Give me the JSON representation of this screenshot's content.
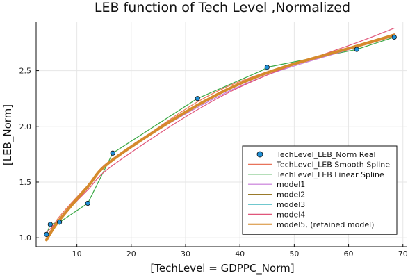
{
  "chart_data": {
    "type": "scatter",
    "title": "LEB function of Tech Level ,Normalized",
    "xlabel": "[TechLevel = GDPPC_Norm]",
    "ylabel": "[LEB_Norm]",
    "xlim": [
      2.5,
      70.8
    ],
    "ylim": [
      0.92,
      2.94
    ],
    "xticks": [
      10,
      20,
      30,
      40,
      50,
      60,
      70
    ],
    "yticks": [
      1.0,
      1.5,
      2.0,
      2.5
    ],
    "xtick_labels": [
      "10",
      "20",
      "30",
      "40",
      "50",
      "60",
      "70"
    ],
    "ytick_labels": [
      "1.0",
      "1.5",
      "2.0",
      "2.5"
    ],
    "grid": true,
    "legend_position": "bottom-right",
    "points_series": {
      "name": "TechLevel_LEB_Norm Real",
      "color": "#1f8fd6",
      "x": [
        4.4,
        5.1,
        6.8,
        12.0,
        16.6,
        32.2,
        45.0,
        61.5,
        68.4
      ],
      "y": [
        1.03,
        1.12,
        1.14,
        1.31,
        1.76,
        2.25,
        2.53,
        2.69,
        2.8
      ]
    },
    "series": [
      {
        "name": "TechLevel_LEB Smooth Spline",
        "color": "#e8735a",
        "x": [
          4.4,
          5.1,
          6.8,
          12.0,
          16.6,
          32.2,
          45.0,
          61.5,
          68.4
        ],
        "y": [
          1.0,
          1.06,
          1.19,
          1.47,
          1.69,
          2.22,
          2.49,
          2.71,
          2.81
        ]
      },
      {
        "name": "TechLevel_LEB Linear Spline",
        "color": "#3aa845",
        "x": [
          4.4,
          5.1,
          6.8,
          12.0,
          16.6,
          32.2,
          44.0,
          45.0,
          61.5,
          68.4
        ],
        "y": [
          1.03,
          1.12,
          1.14,
          1.31,
          1.76,
          2.25,
          2.5,
          2.53,
          2.69,
          2.8
        ]
      },
      {
        "name": "model1",
        "color": "#c678d8",
        "x": [
          4.4,
          5.1,
          6.8,
          12.0,
          16.6,
          32.2,
          45.0,
          61.5,
          68.4
        ],
        "y": [
          1.0,
          1.05,
          1.17,
          1.47,
          1.71,
          2.17,
          2.46,
          2.71,
          2.83
        ]
      },
      {
        "name": "model2",
        "color": "#9a7a2a",
        "x": [
          4.4,
          5.1,
          6.8,
          12.0,
          16.6,
          32.2,
          45.0,
          61.5,
          68.4
        ],
        "y": [
          0.99,
          1.04,
          1.16,
          1.46,
          1.7,
          2.19,
          2.48,
          2.72,
          2.82
        ]
      },
      {
        "name": "model3",
        "color": "#1ba6b0",
        "x": [
          4.4,
          5.1,
          6.8,
          12.0,
          16.6,
          32.2,
          45.0,
          61.5,
          68.4
        ],
        "y": [
          0.99,
          1.04,
          1.16,
          1.46,
          1.7,
          2.19,
          2.48,
          2.72,
          2.82
        ]
      },
      {
        "name": "model4",
        "color": "#e0567a",
        "x": [
          4.4,
          5.1,
          6.8,
          12.0,
          16.6,
          32.2,
          45.0,
          61.5,
          68.4
        ],
        "y": [
          1.05,
          1.08,
          1.17,
          1.43,
          1.65,
          2.15,
          2.46,
          2.75,
          2.88
        ]
      },
      {
        "name": "model5, (retained model)",
        "color": "#d58a2c",
        "width": 4,
        "x": [
          4.4,
          5.1,
          6.8,
          12.0,
          16.6,
          32.2,
          45.0,
          61.5,
          68.4
        ],
        "y": [
          0.98,
          1.04,
          1.16,
          1.46,
          1.7,
          2.19,
          2.48,
          2.72,
          2.82
        ]
      }
    ]
  }
}
